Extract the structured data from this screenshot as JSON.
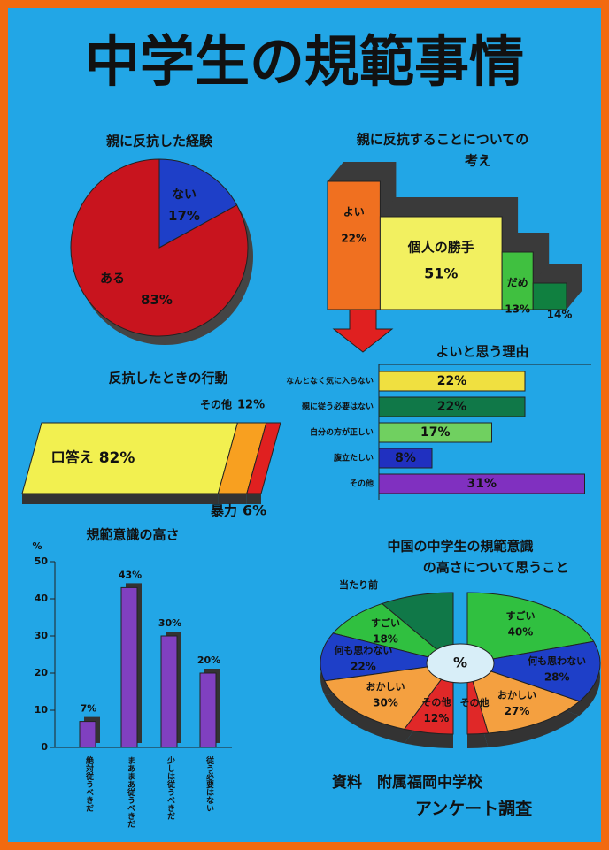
{
  "title": "中学生の規範事情",
  "source": [
    "資料　附属福岡中学校",
    "アンケート調査"
  ],
  "chart_data": [
    {
      "type": "pie",
      "title": "親に反抗した経験",
      "categories": [
        "ない",
        "ある"
      ],
      "values": [
        17,
        83
      ],
      "value_labels": [
        "17%",
        "83%"
      ],
      "colors": [
        "#1e3fc8",
        "#c8141e"
      ]
    },
    {
      "type": "mekko",
      "title": [
        "親に反抗することについての",
        "考え"
      ],
      "categories": [
        "よい",
        "個人の勝手",
        "だめ",
        null
      ],
      "values": [
        22,
        51,
        13,
        14
      ],
      "value_labels": [
        "22%",
        "51%",
        "13%",
        "14%"
      ],
      "colors": [
        "#f07020",
        "#f2f060",
        "#40c040",
        "#108040"
      ]
    },
    {
      "type": "hbar",
      "title": "よいと思う理由",
      "categories": [
        "なんとなく気に入らない",
        "親に従う必要はない",
        "自分の方が正しい",
        "腹立たしい",
        "その他"
      ],
      "values": [
        22,
        22,
        17,
        8,
        31
      ],
      "value_labels": [
        "22%",
        "22%",
        "17%",
        "8%",
        "31%"
      ],
      "colors": [
        "#f0e040",
        "#107848",
        "#70d060",
        "#2030c0",
        "#8030c0"
      ],
      "xlim": [
        0,
        32
      ]
    },
    {
      "type": "stack",
      "title": "反抗したときの行動",
      "categories": [
        "口答え",
        "その他",
        "暴力"
      ],
      "values": [
        82,
        12,
        6
      ],
      "value_labels": [
        "82%",
        "12%",
        "6%"
      ],
      "colors": [
        "#f2f050",
        "#f8a020",
        "#e02020"
      ]
    },
    {
      "type": "bar",
      "title": "規範意識の高さ",
      "y_label": "%",
      "categories": [
        "絶対従うべきだ",
        "まあまあ従うべきだ",
        "少しは従うべきだ",
        "従う必要はない"
      ],
      "values": [
        7,
        43,
        30,
        20
      ],
      "value_labels": [
        "7%",
        "43%",
        "30%",
        "20%"
      ],
      "color": "#8040c0",
      "ylim": [
        0,
        50
      ],
      "yticks": [
        0,
        10,
        20,
        30,
        40,
        50
      ]
    },
    {
      "type": "split-pie",
      "title": [
        "中国の中学生の規範意識",
        "の高さについて思うこと"
      ],
      "center_label": "%",
      "groups": [
        {
          "categories": [
            "当たり前",
            "すごい",
            "何も思わない",
            "おかしい",
            "その他"
          ],
          "values": [
            18,
            18,
            22,
            30,
            12
          ],
          "value_labels": [
            null,
            "18%",
            "22%",
            "30%",
            "12%"
          ],
          "colors": [
            "#107848",
            "#30c040",
            "#1e3fc8",
            "#f4a040",
            "#e02828"
          ]
        },
        {
          "categories": [
            "すごい",
            "何も思わない",
            "おかしい",
            "その他"
          ],
          "values": [
            40,
            28,
            27,
            5
          ],
          "value_labels": [
            "40%",
            "28%",
            "27%",
            null
          ],
          "colors": [
            "#30c040",
            "#1e3fc8",
            "#f4a040",
            "#e02828"
          ]
        }
      ]
    }
  ]
}
